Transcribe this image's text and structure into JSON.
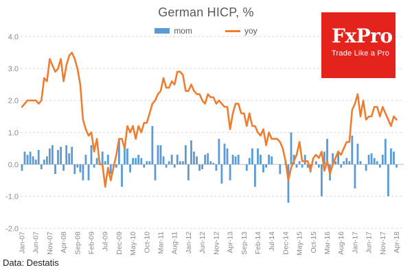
{
  "title": "German HICP, %",
  "legend": {
    "mom_label": "mom",
    "yoy_label": "yoy"
  },
  "logo": {
    "name": "FxPro",
    "tagline": "Trade Like a Pro",
    "bg_color": "#E3231C"
  },
  "source": "Data: Destatis",
  "colors": {
    "mom": "#5B9BD5",
    "yoy": "#ED7D31",
    "grid": "#D9D9D9",
    "zero_axis": "#C6C6C6",
    "tick_text": "#8A8A8A",
    "title_text": "#595959"
  },
  "chart_data": {
    "type": "bar",
    "subtype": "bar+line combo",
    "title": "German HICP, %",
    "xlabel": "",
    "ylabel": "",
    "ylim": [
      -2.0,
      4.0
    ],
    "ytick_labels": [
      "4.0",
      "3.0",
      "2.0",
      "1.0",
      "0.0",
      "-1.0",
      "-2.0"
    ],
    "xtick_step": 5,
    "grid": "horizontal-dashed",
    "legend_position": "top",
    "categories": [
      "Jan-07",
      "Feb-07",
      "Mar-07",
      "Apr-07",
      "May-07",
      "Jun-07",
      "Jul-07",
      "Aug-07",
      "Sep-07",
      "Oct-07",
      "Nov-07",
      "Dec-07",
      "Jan-08",
      "Feb-08",
      "Mar-08",
      "Apr-08",
      "May-08",
      "Jun-08",
      "Jul-08",
      "Aug-08",
      "Sep-08",
      "Oct-08",
      "Nov-08",
      "Dec-08",
      "Jan-09",
      "Feb-09",
      "Mar-09",
      "Apr-09",
      "May-09",
      "Jun-09",
      "Jul-09",
      "Aug-09",
      "Sep-09",
      "Oct-09",
      "Nov-09",
      "Dec-09",
      "Jan-10",
      "Feb-10",
      "Mar-10",
      "Apr-10",
      "May-10",
      "Jun-10",
      "Jul-10",
      "Aug-10",
      "Sep-10",
      "Oct-10",
      "Nov-10",
      "Dec-10",
      "Jan-11",
      "Feb-11",
      "Mar-11",
      "Apr-11",
      "May-11",
      "Jun-11",
      "Jul-11",
      "Aug-11",
      "Sep-11",
      "Oct-11",
      "Nov-11",
      "Dec-11",
      "Jan-12",
      "Feb-12",
      "Mar-12",
      "Apr-12",
      "May-12",
      "Jun-12",
      "Jul-12",
      "Aug-12",
      "Sep-12",
      "Oct-12",
      "Nov-12",
      "Dec-12",
      "Jan-13",
      "Feb-13",
      "Mar-13",
      "Apr-13",
      "May-13",
      "Jun-13",
      "Jul-13",
      "Aug-13",
      "Sep-13",
      "Oct-13",
      "Nov-13",
      "Dec-13",
      "Jan-14",
      "Feb-14",
      "Mar-14",
      "Apr-14",
      "May-14",
      "Jun-14",
      "Jul-14",
      "Aug-14",
      "Sep-14",
      "Oct-14",
      "Nov-14",
      "Dec-14",
      "Jan-15",
      "Feb-15",
      "Mar-15",
      "Apr-15",
      "May-15",
      "Jun-15",
      "Jul-15",
      "Aug-15",
      "Sep-15",
      "Oct-15",
      "Nov-15",
      "Dec-15",
      "Jan-16",
      "Feb-16",
      "Mar-16",
      "Apr-16",
      "May-16",
      "Jun-16",
      "Jul-16",
      "Aug-16",
      "Sep-16",
      "Oct-16",
      "Nov-16",
      "Dec-16",
      "Jan-17",
      "Feb-17",
      "Mar-17",
      "Apr-17",
      "May-17",
      "Jun-17",
      "Jul-17",
      "Aug-17",
      "Sep-17",
      "Oct-17",
      "Nov-17",
      "Dec-17",
      "Jan-18",
      "Feb-18",
      "Mar-18",
      "Apr-18"
    ],
    "series": [
      {
        "name": "mom",
        "type": "bar",
        "color": "#5B9BD5",
        "values": [
          -0.2,
          0.4,
          0.3,
          0.4,
          0.25,
          0.15,
          0.45,
          -0.15,
          0.15,
          0.25,
          0.5,
          0.6,
          -0.3,
          0.45,
          0.55,
          -0.2,
          0.6,
          0.35,
          0.55,
          -0.3,
          -0.1,
          -0.25,
          -0.5,
          0.3,
          -0.5,
          0.6,
          -0.1,
          0.2,
          0.1,
          0.4,
          0.1,
          0.3,
          -0.3,
          -0.1,
          -0.1,
          0.8,
          -0.7,
          0.5,
          0.5,
          -0.25,
          0.2,
          0.2,
          0.3,
          0.2,
          -0.1,
          0.1,
          0.1,
          1.2,
          -0.5,
          0.6,
          0.6,
          0.25,
          -0.1,
          0.1,
          0.3,
          -0.1,
          0.3,
          0.1,
          0.1,
          0.6,
          -0.5,
          0.75,
          0.4,
          0.25,
          -0.2,
          -0.15,
          0.3,
          0.35,
          0.1,
          0.05,
          -0.2,
          0.8,
          -0.6,
          0.65,
          0.5,
          -0.5,
          0.3,
          0.25,
          0.3,
          0.0,
          0.0,
          -0.2,
          0.2,
          0.5,
          -0.7,
          0.5,
          0.3,
          -0.25,
          -0.1,
          0.3,
          0.25,
          0.0,
          0.0,
          -0.3,
          0.0,
          0.1,
          -1.2,
          1.0,
          0.3,
          -0.1,
          0.1,
          -0.1,
          0.3,
          -0.1,
          -0.25,
          0.0,
          0.1,
          -0.1,
          -1.0,
          0.4,
          0.8,
          -0.5,
          0.35,
          0.1,
          0.4,
          -0.1,
          0.1,
          0.2,
          0.1,
          0.9,
          -0.75,
          0.65,
          0.1,
          0.0,
          -0.2,
          0.3,
          0.35,
          0.2,
          0.1,
          -0.1,
          0.3,
          0.8,
          -1.0,
          0.5,
          0.4,
          -0.1
        ]
      },
      {
        "name": "yoy",
        "type": "line",
        "color": "#ED7D31",
        "values": [
          1.8,
          1.9,
          2.0,
          2.0,
          2.0,
          2.0,
          1.9,
          2.0,
          2.7,
          2.6,
          3.3,
          3.1,
          2.9,
          3.0,
          3.3,
          2.6,
          3.1,
          3.4,
          3.5,
          3.3,
          3.0,
          2.5,
          1.4,
          1.1,
          0.9,
          1.0,
          0.4,
          0.8,
          0.0,
          0.0,
          -0.7,
          -0.1,
          -0.5,
          -0.1,
          0.3,
          0.8,
          0.8,
          0.5,
          1.2,
          1.0,
          1.2,
          0.8,
          1.2,
          1.0,
          1.3,
          1.3,
          1.6,
          1.9,
          2.0,
          2.2,
          2.3,
          2.7,
          2.4,
          2.4,
          2.6,
          2.5,
          2.9,
          2.9,
          2.8,
          2.3,
          2.3,
          2.5,
          2.3,
          2.2,
          2.2,
          2.0,
          1.9,
          2.2,
          2.1,
          2.1,
          1.9,
          2.0,
          1.9,
          1.8,
          1.8,
          1.1,
          1.6,
          1.9,
          1.9,
          1.6,
          1.6,
          1.2,
          1.6,
          1.2,
          1.2,
          1.0,
          0.9,
          1.1,
          0.6,
          1.0,
          0.8,
          0.8,
          0.8,
          0.7,
          0.5,
          0.1,
          -0.5,
          -0.1,
          0.1,
          0.3,
          0.7,
          0.1,
          0.1,
          0.1,
          -0.2,
          0.2,
          0.3,
          0.2,
          0.4,
          -0.2,
          0.1,
          -0.3,
          0.0,
          0.2,
          0.4,
          0.3,
          0.5,
          0.7,
          0.7,
          1.7,
          1.9,
          2.2,
          1.5,
          2.0,
          1.4,
          1.5,
          1.5,
          1.8,
          1.8,
          1.5,
          1.8,
          1.6,
          1.4,
          1.2,
          1.5,
          1.4
        ]
      }
    ]
  }
}
